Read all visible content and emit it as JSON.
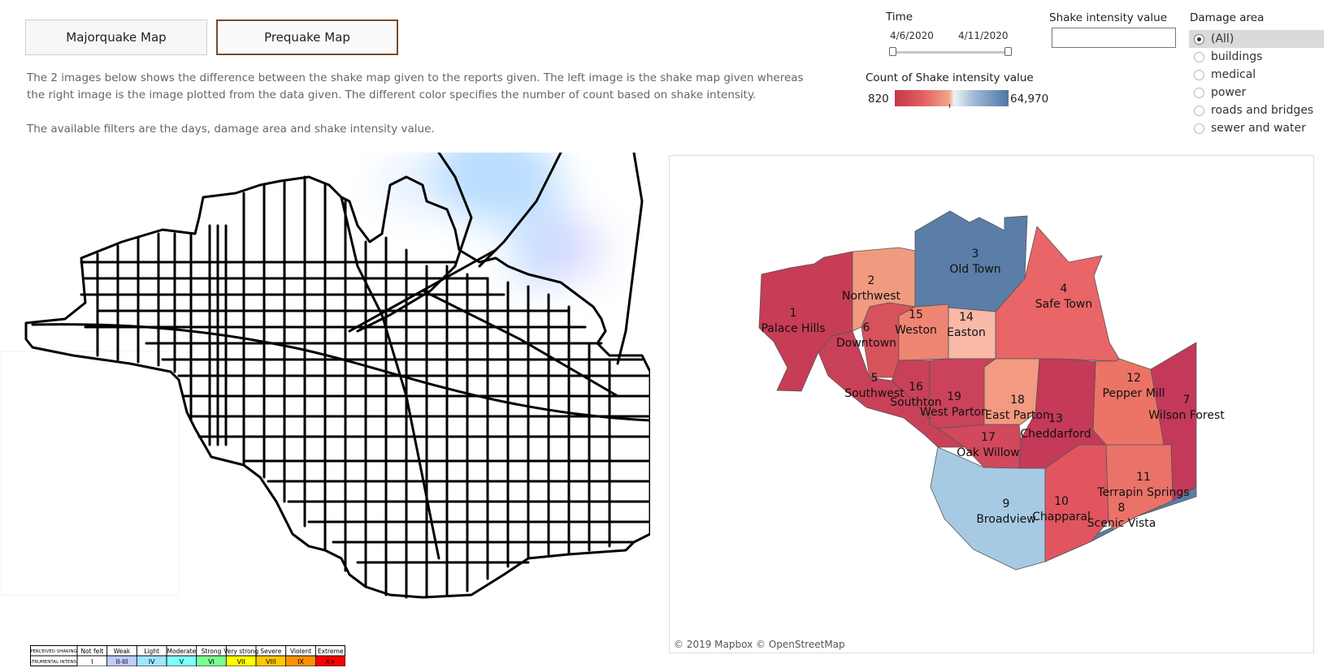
{
  "buttons": {
    "majorquake": "Majorquake Map",
    "prequake": "Prequake Map"
  },
  "description": {
    "line1": "The 2 images below shows the difference between the shake map given to the reports given. The left image is the shake map given whereas",
    "line2": "the right image is the image plotted from the data given. The different color specifies the number of count based on shake intensity.",
    "line3": "The available filters are the days, damage area and shake intensity value."
  },
  "time_filter": {
    "label": "Time",
    "start": "4/6/2020",
    "end": "4/11/2020"
  },
  "shake_filter": {
    "label": "Shake intensity value",
    "value": ""
  },
  "legend": {
    "title": "Count of Shake intensity value",
    "min": "820",
    "max": "64,970",
    "low_color": "#c4374b",
    "high_color": "#4e76a4"
  },
  "damage_area": {
    "label": "Damage area",
    "options": [
      "(All)",
      "buildings",
      "medical",
      "power",
      "roads and bridges",
      "sewer and water"
    ],
    "selected": "(All)"
  },
  "mmi_legend": {
    "row1_label": "PERCEIVED SHAKING",
    "row2_label": "INSTRUMENTAL INTENSITY",
    "shaking": [
      "Not felt",
      "Weak",
      "Light",
      "Moderate",
      "Strong",
      "Very strong",
      "Severe",
      "Violent",
      "Extreme"
    ],
    "intensity": [
      "I",
      "II-III",
      "IV",
      "V",
      "VI",
      "VII",
      "VIII",
      "IX",
      "X+"
    ],
    "colors": [
      "#ffffff",
      "#bfccff",
      "#a0e6ff",
      "#80ffff",
      "#7aff93",
      "#ffff00",
      "#ffc800",
      "#ff9100",
      "#ff0000"
    ]
  },
  "regions": [
    {
      "id": "1",
      "name": "Palace Hills",
      "color": "#c73d55"
    },
    {
      "id": "2",
      "name": "Northwest",
      "color": "#f09a80"
    },
    {
      "id": "3",
      "name": "Old Town",
      "color": "#5a7ea8"
    },
    {
      "id": "4",
      "name": "Safe Town",
      "color": "#e96567"
    },
    {
      "id": "5",
      "name": "Southwest",
      "color": "#c94158"
    },
    {
      "id": "6",
      "name": "Downtown",
      "color": "#d8525c"
    },
    {
      "id": "7",
      "name": "Wilson Forest",
      "color": "#c4395a"
    },
    {
      "id": "8",
      "name": "Scenic Vista",
      "color": "#5a7ea8"
    },
    {
      "id": "9",
      "name": "Broadview",
      "color": "#a6cae4"
    },
    {
      "id": "10",
      "name": "Chapparal",
      "color": "#e0555f"
    },
    {
      "id": "11",
      "name": "Terrapin Springs",
      "color": "#ea7268"
    },
    {
      "id": "12",
      "name": "Pepper Mill",
      "color": "#ec7466"
    },
    {
      "id": "13",
      "name": "Cheddarford",
      "color": "#c43a58"
    },
    {
      "id": "14",
      "name": "Easton",
      "color": "#f8b9a7"
    },
    {
      "id": "15",
      "name": "Weston",
      "color": "#ef8573"
    },
    {
      "id": "16",
      "name": "Southton",
      "color": "#c94158"
    },
    {
      "id": "17",
      "name": "Oak Willow",
      "color": "#d2485c"
    },
    {
      "id": "18",
      "name": "East Parton",
      "color": "#f39a80"
    },
    {
      "id": "19",
      "name": "West Parton",
      "color": "#cb435a"
    }
  ],
  "copyright": "© 2019 Mapbox © OpenStreetMap"
}
